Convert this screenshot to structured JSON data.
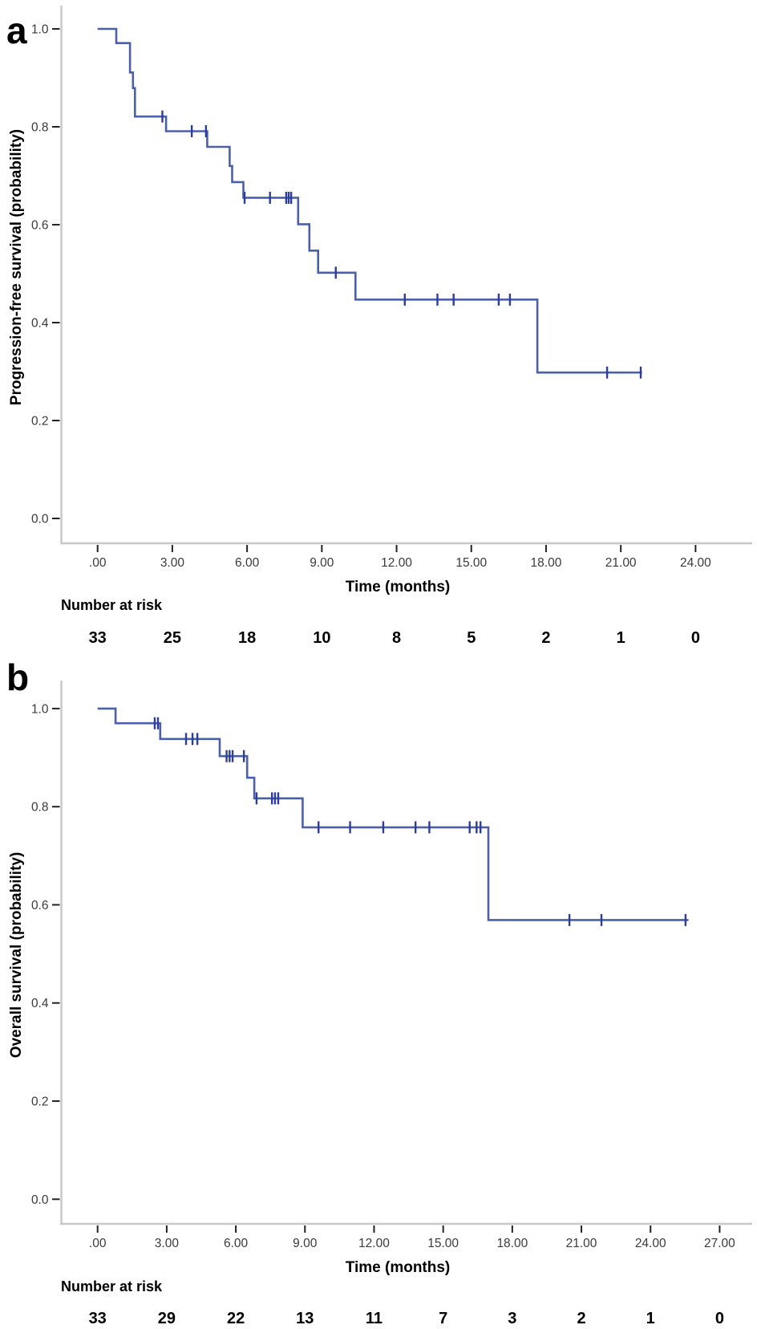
{
  "figure": {
    "panel_letters": [
      "a",
      "b"
    ],
    "colors": {
      "curve": "#4b60a8",
      "censor": "#2c3d9c",
      "axis_line": "#c8c8c8",
      "tick": "#222222",
      "tick_label": "#3a3a3a",
      "text": "#000000",
      "background": "#ffffff"
    }
  },
  "chart_data": [
    {
      "type": "line",
      "subtype": "kaplan_meier_step",
      "panel": "a",
      "title": "",
      "xlabel": "Time (months)",
      "ylabel": "Progression-free survival (probability)",
      "xlim": [
        0,
        24
      ],
      "ylim": [
        0.0,
        1.0
      ],
      "grid": false,
      "legend": "none",
      "x_ticks": {
        "values": [
          0,
          3,
          6,
          9,
          12,
          15,
          18,
          21,
          24
        ],
        "labels": [
          ".00",
          "3.00",
          "6.00",
          "9.00",
          "12.00",
          "15.00",
          "18.00",
          "21.00",
          "24.00"
        ]
      },
      "y_ticks": {
        "values": [
          0.0,
          0.2,
          0.4,
          0.6,
          0.8,
          1.0
        ],
        "labels": [
          "0.0",
          "0.2",
          "0.4",
          "0.6",
          "0.8",
          "1.0"
        ]
      },
      "series": [
        {
          "name": "Progression-free survival",
          "color": "#4b60a8",
          "step_points": [
            [
              0,
              1.0
            ],
            [
              0.75,
              1.0
            ],
            [
              0.75,
              0.971
            ],
            [
              1.3,
              0.971
            ],
            [
              1.3,
              0.911
            ],
            [
              1.42,
              0.911
            ],
            [
              1.42,
              0.879
            ],
            [
              1.5,
              0.879
            ],
            [
              1.5,
              0.821
            ],
            [
              2.75,
              0.821
            ],
            [
              2.75,
              0.791
            ],
            [
              4.4,
              0.791
            ],
            [
              4.4,
              0.759
            ],
            [
              5.3,
              0.759
            ],
            [
              5.3,
              0.72
            ],
            [
              5.4,
              0.72
            ],
            [
              5.4,
              0.687
            ],
            [
              5.85,
              0.687
            ],
            [
              5.85,
              0.655
            ],
            [
              8.05,
              0.655
            ],
            [
              8.05,
              0.601
            ],
            [
              8.5,
              0.601
            ],
            [
              8.5,
              0.547
            ],
            [
              8.85,
              0.547
            ],
            [
              8.85,
              0.502
            ],
            [
              10.35,
              0.502
            ],
            [
              10.35,
              0.447
            ],
            [
              17.65,
              0.447
            ],
            [
              17.65,
              0.298
            ],
            [
              21.85,
              0.298
            ]
          ],
          "censor_marks": [
            [
              2.6,
              0.821
            ],
            [
              3.78,
              0.791
            ],
            [
              4.35,
              0.791
            ],
            [
              5.9,
              0.655
            ],
            [
              6.92,
              0.655
            ],
            [
              7.57,
              0.655
            ],
            [
              7.67,
              0.655
            ],
            [
              7.77,
              0.655
            ],
            [
              9.56,
              0.502
            ],
            [
              12.33,
              0.447
            ],
            [
              13.64,
              0.447
            ],
            [
              14.29,
              0.447
            ],
            [
              16.1,
              0.447
            ],
            [
              16.55,
              0.447
            ],
            [
              20.45,
              0.298
            ],
            [
              21.8,
              0.298
            ]
          ]
        }
      ],
      "at_risk": {
        "label": "Number at risk",
        "times": [
          0,
          3,
          6,
          9,
          12,
          15,
          18,
          21,
          24
        ],
        "counts": [
          33,
          25,
          18,
          10,
          8,
          5,
          2,
          1,
          0
        ]
      }
    },
    {
      "type": "line",
      "subtype": "kaplan_meier_step",
      "panel": "b",
      "title": "",
      "xlabel": "Time (months)",
      "ylabel": "Overall survival (probability)",
      "xlim": [
        0,
        27
      ],
      "ylim": [
        0.0,
        1.0
      ],
      "grid": false,
      "legend": "none",
      "x_ticks": {
        "values": [
          0,
          3,
          6,
          9,
          12,
          15,
          18,
          21,
          24,
          27
        ],
        "labels": [
          ".00",
          "3.00",
          "6.00",
          "9.00",
          "12.00",
          "15.00",
          "18.00",
          "21.00",
          "24.00",
          "27.00"
        ]
      },
      "y_ticks": {
        "values": [
          0.0,
          0.2,
          0.4,
          0.6,
          0.8,
          1.0
        ],
        "labels": [
          "0.0",
          "0.2",
          "0.4",
          "0.6",
          "0.8",
          "1.0"
        ]
      },
      "series": [
        {
          "name": "Overall survival",
          "color": "#4b60a8",
          "step_points": [
            [
              0,
              1.0
            ],
            [
              0.78,
              1.0
            ],
            [
              0.78,
              0.97
            ],
            [
              2.72,
              0.97
            ],
            [
              2.72,
              0.938
            ],
            [
              5.3,
              0.938
            ],
            [
              5.3,
              0.903
            ],
            [
              6.49,
              0.903
            ],
            [
              6.49,
              0.859
            ],
            [
              6.8,
              0.859
            ],
            [
              6.8,
              0.817
            ],
            [
              8.9,
              0.817
            ],
            [
              8.9,
              0.758
            ],
            [
              16.96,
              0.758
            ],
            [
              16.96,
              0.569
            ],
            [
              25.65,
              0.569
            ]
          ],
          "censor_marks": [
            [
              2.48,
              0.97
            ],
            [
              2.62,
              0.97
            ],
            [
              3.84,
              0.938
            ],
            [
              4.12,
              0.938
            ],
            [
              4.33,
              0.938
            ],
            [
              5.6,
              0.903
            ],
            [
              5.73,
              0.903
            ],
            [
              5.86,
              0.903
            ],
            [
              6.35,
              0.903
            ],
            [
              6.9,
              0.817
            ],
            [
              7.57,
              0.817
            ],
            [
              7.7,
              0.817
            ],
            [
              7.84,
              0.817
            ],
            [
              9.59,
              0.758
            ],
            [
              10.96,
              0.758
            ],
            [
              12.4,
              0.758
            ],
            [
              13.8,
              0.758
            ],
            [
              14.4,
              0.758
            ],
            [
              16.15,
              0.758
            ],
            [
              16.45,
              0.758
            ],
            [
              16.62,
              0.758
            ],
            [
              20.48,
              0.569
            ],
            [
              21.87,
              0.569
            ],
            [
              25.52,
              0.569
            ]
          ]
        }
      ],
      "at_risk": {
        "label": "Number at risk",
        "times": [
          0,
          3,
          6,
          9,
          12,
          15,
          18,
          21,
          24,
          27
        ],
        "counts": [
          33,
          29,
          22,
          13,
          11,
          7,
          3,
          2,
          1,
          0
        ]
      }
    }
  ]
}
